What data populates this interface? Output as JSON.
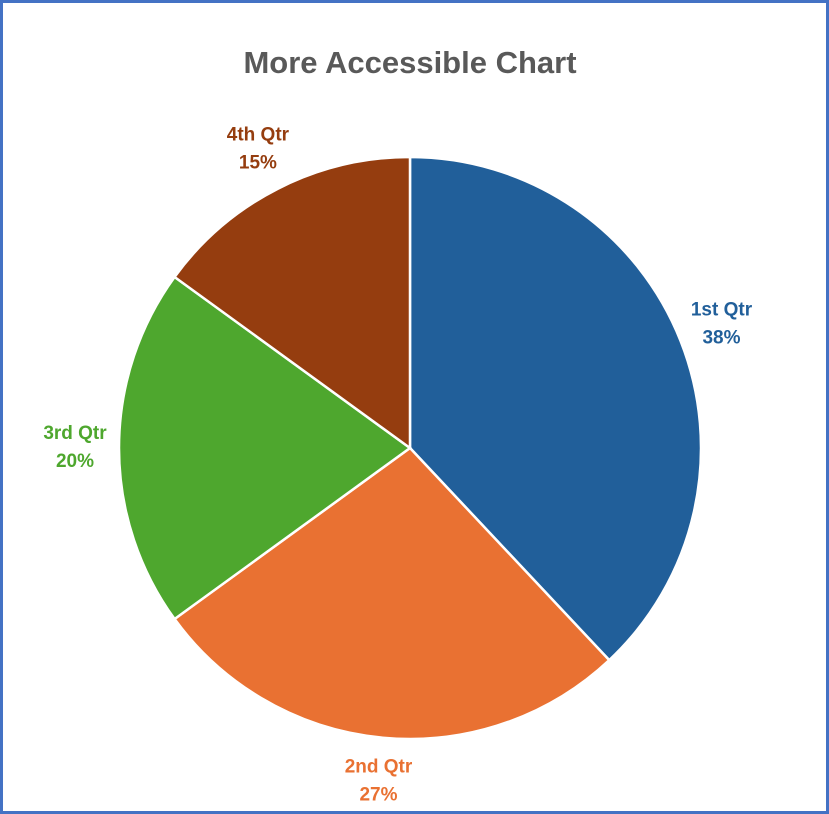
{
  "chart_data": {
    "type": "pie",
    "title": "More Accessible Chart",
    "categories": [
      "1st Qtr",
      "2nd Qtr",
      "3rd Qtr",
      "4th Qtr"
    ],
    "values": [
      38,
      27,
      20,
      15
    ],
    "value_labels": [
      "38%",
      "27%",
      "20%",
      "15%"
    ],
    "colors": [
      "#215f9a",
      "#e97132",
      "#4ea72e",
      "#953d0f"
    ]
  }
}
